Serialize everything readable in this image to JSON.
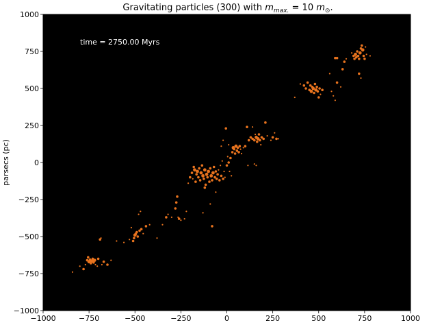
{
  "chart_data": {
    "type": "scatter",
    "title_prefix": "Gravitating  particles (300) with ",
    "title_m": "m",
    "title_sub": "max.",
    "title_mid": " = 10 ",
    "title_m2": "m",
    "title_sub2": "⊙",
    "title_end": ".",
    "xlabel": "",
    "ylabel": "parsecs (pc)",
    "annotation": "time = 2750.00 Myrs",
    "xlim": [
      -1000,
      1000
    ],
    "ylim": [
      -1000,
      1000
    ],
    "xticks": [
      -1000,
      -750,
      -500,
      -250,
      0,
      250,
      500,
      750,
      1000
    ],
    "yticks": [
      -1000,
      -750,
      -500,
      -250,
      0,
      250,
      500,
      750,
      1000
    ],
    "xtick_labels": [
      "−1000",
      "−750",
      "−500",
      "−250",
      "0",
      "250",
      "500",
      "750",
      "1000"
    ],
    "ytick_labels": [
      "−1000",
      "−750",
      "−500",
      "−250",
      "0",
      "250",
      "500",
      "750",
      "1000"
    ],
    "grid": false,
    "background_color": "#000000",
    "point_color": "#e8731e",
    "points": [
      [
        -840,
        -740,
        1
      ],
      [
        -800,
        -700,
        1
      ],
      [
        -780,
        -720,
        2
      ],
      [
        -770,
        -690,
        1
      ],
      [
        -760,
        -660,
        2
      ],
      [
        -755,
        -640,
        2
      ],
      [
        -750,
        -670,
        3
      ],
      [
        -745,
        -655,
        2
      ],
      [
        -740,
        -680,
        2
      ],
      [
        -735,
        -665,
        3
      ],
      [
        -730,
        -650,
        2
      ],
      [
        -725,
        -675,
        2
      ],
      [
        -720,
        -660,
        3
      ],
      [
        -715,
        -690,
        1
      ],
      [
        -705,
        -700,
        1
      ],
      [
        -700,
        -650,
        2
      ],
      [
        -690,
        -520,
        2
      ],
      [
        -685,
        -510,
        1
      ],
      [
        -680,
        -690,
        1
      ],
      [
        -670,
        -670,
        2
      ],
      [
        -650,
        -690,
        2
      ],
      [
        -630,
        -660,
        1
      ],
      [
        -600,
        -530,
        1
      ],
      [
        -560,
        -540,
        1
      ],
      [
        -530,
        -520,
        1
      ],
      [
        -520,
        -440,
        1
      ],
      [
        -510,
        -530,
        2
      ],
      [
        -505,
        -510,
        2
      ],
      [
        -500,
        -490,
        3
      ],
      [
        -495,
        -480,
        2
      ],
      [
        -490,
        -470,
        2
      ],
      [
        -485,
        -500,
        2
      ],
      [
        -480,
        -350,
        1
      ],
      [
        -475,
        -460,
        2
      ],
      [
        -470,
        -330,
        1
      ],
      [
        -465,
        -450,
        2
      ],
      [
        -455,
        -480,
        1
      ],
      [
        -440,
        -430,
        2
      ],
      [
        -420,
        -420,
        1
      ],
      [
        -380,
        -510,
        1
      ],
      [
        -350,
        -420,
        1
      ],
      [
        -330,
        -370,
        2
      ],
      [
        -320,
        -350,
        1
      ],
      [
        -300,
        -370,
        1
      ],
      [
        -280,
        -310,
        2
      ],
      [
        -275,
        -270,
        2
      ],
      [
        -270,
        -230,
        2
      ],
      [
        -265,
        -370,
        1
      ],
      [
        -260,
        -380,
        2
      ],
      [
        -250,
        -390,
        1
      ],
      [
        -230,
        -380,
        1
      ],
      [
        -220,
        -330,
        1
      ],
      [
        -210,
        -140,
        1
      ],
      [
        -200,
        -100,
        2
      ],
      [
        -190,
        -70,
        2
      ],
      [
        -185,
        -110,
        1
      ],
      [
        -180,
        -30,
        2
      ],
      [
        -175,
        -50,
        3
      ],
      [
        -170,
        -130,
        2
      ],
      [
        -165,
        -80,
        2
      ],
      [
        -160,
        -60,
        3
      ],
      [
        -155,
        -100,
        2
      ],
      [
        -150,
        -40,
        2
      ],
      [
        -145,
        -120,
        2
      ],
      [
        -140,
        -70,
        3
      ],
      [
        -135,
        -20,
        2
      ],
      [
        -130,
        -90,
        3
      ],
      [
        -125,
        -110,
        2
      ],
      [
        -120,
        -50,
        3
      ],
      [
        -115,
        -150,
        2
      ],
      [
        -110,
        -80,
        3
      ],
      [
        -105,
        -100,
        2
      ],
      [
        -100,
        -60,
        3
      ],
      [
        -95,
        -130,
        2
      ],
      [
        -90,
        -40,
        2
      ],
      [
        -85,
        -90,
        3
      ],
      [
        -80,
        -120,
        2
      ],
      [
        -75,
        -70,
        3
      ],
      [
        -70,
        -30,
        2
      ],
      [
        -65,
        -100,
        2
      ],
      [
        -60,
        -60,
        2
      ],
      [
        -55,
        -110,
        2
      ],
      [
        -50,
        -80,
        2
      ],
      [
        -45,
        -50,
        1
      ],
      [
        -40,
        -120,
        2
      ],
      [
        -35,
        -20,
        1
      ],
      [
        -30,
        -90,
        2
      ],
      [
        -25,
        10,
        1
      ],
      [
        -20,
        -110,
        2
      ],
      [
        -15,
        -60,
        1
      ],
      [
        -10,
        -100,
        1
      ],
      [
        -5,
        230,
        2
      ],
      [
        -120,
        -170,
        2
      ],
      [
        -130,
        -340,
        1
      ],
      [
        -90,
        -280,
        1
      ],
      [
        -80,
        -430,
        2
      ],
      [
        -60,
        -200,
        1
      ],
      [
        0,
        -20,
        2
      ],
      [
        5,
        40,
        1
      ],
      [
        10,
        0,
        2
      ],
      [
        15,
        -60,
        1
      ],
      [
        20,
        30,
        2
      ],
      [
        25,
        -90,
        1
      ],
      [
        30,
        70,
        2
      ],
      [
        35,
        100,
        3
      ],
      [
        40,
        90,
        2
      ],
      [
        45,
        60,
        2
      ],
      [
        50,
        110,
        3
      ],
      [
        55,
        80,
        2
      ],
      [
        60,
        100,
        2
      ],
      [
        65,
        70,
        2
      ],
      [
        70,
        110,
        2
      ],
      [
        75,
        90,
        1
      ],
      [
        80,
        60,
        1
      ],
      [
        90,
        100,
        1
      ],
      [
        100,
        110,
        2
      ],
      [
        110,
        240,
        2
      ],
      [
        115,
        -20,
        1
      ],
      [
        120,
        150,
        2
      ],
      [
        130,
        170,
        2
      ],
      [
        140,
        160,
        2
      ],
      [
        150,
        150,
        2
      ],
      [
        155,
        190,
        1
      ],
      [
        160,
        170,
        3
      ],
      [
        165,
        140,
        2
      ],
      [
        170,
        160,
        3
      ],
      [
        175,
        190,
        2
      ],
      [
        180,
        150,
        2
      ],
      [
        185,
        120,
        1
      ],
      [
        190,
        170,
        2
      ],
      [
        200,
        160,
        2
      ],
      [
        210,
        270,
        2
      ],
      [
        220,
        180,
        1
      ],
      [
        240,
        150,
        1
      ],
      [
        250,
        170,
        2
      ],
      [
        260,
        200,
        1
      ],
      [
        270,
        160,
        2
      ],
      [
        280,
        160,
        1
      ],
      [
        150,
        -10,
        1
      ],
      [
        160,
        -20,
        1
      ],
      [
        140,
        240,
        1
      ],
      [
        -30,
        110,
        1
      ],
      [
        -20,
        150,
        1
      ],
      [
        10,
        120,
        1
      ],
      [
        370,
        440,
        1
      ],
      [
        400,
        530,
        1
      ],
      [
        420,
        520,
        2
      ],
      [
        430,
        500,
        2
      ],
      [
        440,
        540,
        2
      ],
      [
        450,
        490,
        2
      ],
      [
        455,
        520,
        2
      ],
      [
        460,
        480,
        3
      ],
      [
        465,
        510,
        2
      ],
      [
        470,
        500,
        3
      ],
      [
        475,
        470,
        2
      ],
      [
        480,
        530,
        2
      ],
      [
        485,
        490,
        3
      ],
      [
        490,
        510,
        2
      ],
      [
        495,
        480,
        2
      ],
      [
        500,
        440,
        2
      ],
      [
        505,
        500,
        2
      ],
      [
        510,
        460,
        1
      ],
      [
        520,
        490,
        2
      ],
      [
        560,
        600,
        1
      ],
      [
        570,
        480,
        1
      ],
      [
        580,
        450,
        1
      ],
      [
        590,
        420,
        1
      ],
      [
        600,
        540,
        2
      ],
      [
        620,
        510,
        1
      ],
      [
        630,
        630,
        2
      ],
      [
        640,
        680,
        2
      ],
      [
        650,
        700,
        1
      ],
      [
        680,
        740,
        1
      ],
      [
        690,
        720,
        2
      ],
      [
        695,
        700,
        2
      ],
      [
        700,
        730,
        3
      ],
      [
        705,
        710,
        2
      ],
      [
        710,
        750,
        2
      ],
      [
        715,
        720,
        2
      ],
      [
        720,
        700,
        2
      ],
      [
        725,
        740,
        3
      ],
      [
        730,
        770,
        2
      ],
      [
        735,
        790,
        2
      ],
      [
        740,
        760,
        3
      ],
      [
        745,
        720,
        2
      ],
      [
        750,
        700,
        2
      ],
      [
        755,
        780,
        1
      ],
      [
        760,
        730,
        1
      ],
      [
        720,
        600,
        2
      ],
      [
        730,
        570,
        1
      ],
      [
        780,
        720,
        1
      ],
      [
        600,
        705,
        2
      ],
      [
        590,
        705,
        2
      ]
    ]
  }
}
